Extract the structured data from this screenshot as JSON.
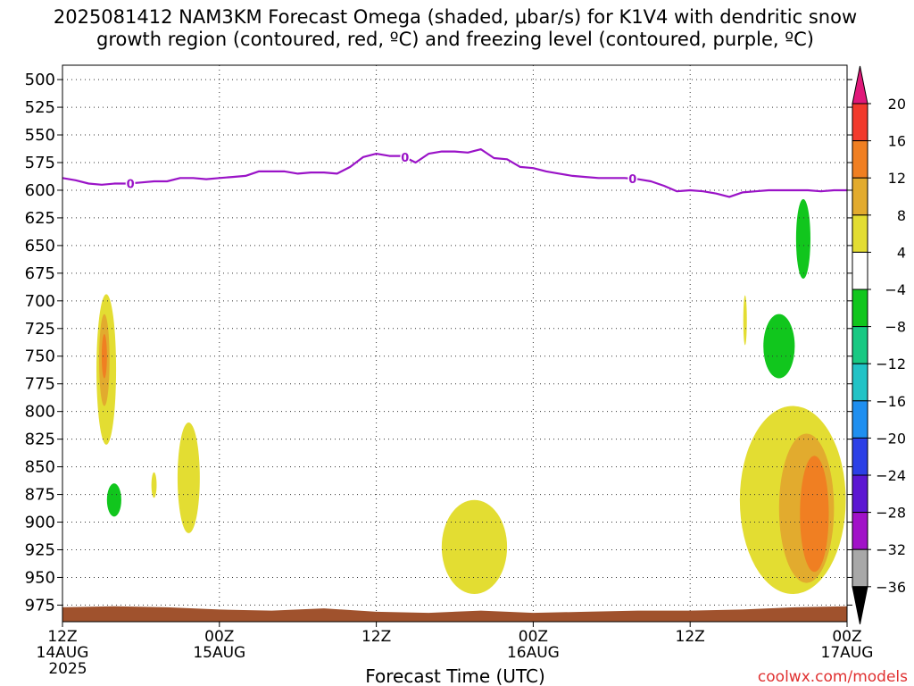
{
  "chart_data": {
    "type": "heatmap",
    "title_lines": [
      "2025081412 NAM3KM Forecast Omega (shaded, μbar/s) for K1V4 with dendritic snow",
      "growth region (contoured, red, ºC) and freezing level (contoured, purple, ºC)"
    ],
    "xlabel": "Forecast Time (UTC)",
    "credit": "coolwx.com/models",
    "x_range_hours": [
      0,
      60
    ],
    "x_ticks": [
      {
        "hour": 0,
        "lines": [
          "12Z",
          "14AUG",
          "2025"
        ]
      },
      {
        "hour": 12,
        "lines": [
          "00Z",
          "15AUG"
        ]
      },
      {
        "hour": 24,
        "lines": [
          "12Z"
        ]
      },
      {
        "hour": 36,
        "lines": [
          "00Z",
          "16AUG"
        ]
      },
      {
        "hour": 48,
        "lines": [
          "12Z"
        ]
      },
      {
        "hour": 60,
        "lines": [
          "00Z",
          "17AUG"
        ]
      }
    ],
    "y_range_hpa": [
      487,
      990
    ],
    "y_ticks": [
      500,
      525,
      550,
      575,
      600,
      625,
      650,
      675,
      700,
      725,
      750,
      775,
      800,
      825,
      850,
      875,
      900,
      925,
      950,
      975
    ],
    "grid": true,
    "colorbar": {
      "bins": [
        {
          "from": 20,
          "to": null,
          "color": "#e0197a"
        },
        {
          "from": 16,
          "to": 20,
          "color": "#f23a2c"
        },
        {
          "from": 12,
          "to": 16,
          "color": "#f07f22"
        },
        {
          "from": 8,
          "to": 12,
          "color": "#e2ab2e"
        },
        {
          "from": 4,
          "to": 8,
          "color": "#e3dd32"
        },
        {
          "from": -4,
          "to": 4,
          "color": "#ffffff"
        },
        {
          "from": -8,
          "to": -4,
          "color": "#11c61d"
        },
        {
          "from": -12,
          "to": -8,
          "color": "#19c983"
        },
        {
          "from": -16,
          "to": -12,
          "color": "#22c3c6"
        },
        {
          "from": -20,
          "to": -16,
          "color": "#1f8ff0"
        },
        {
          "from": -24,
          "to": -20,
          "color": "#2c40e6"
        },
        {
          "from": -28,
          "to": -24,
          "color": "#5c17d2"
        },
        {
          "from": -32,
          "to": -28,
          "color": "#a112c8"
        },
        {
          "from": -36,
          "to": -32,
          "color": "#a8a8a8"
        },
        {
          "from": null,
          "to": -36,
          "color": "#000000"
        }
      ],
      "labels": [
        "20",
        "16",
        "12",
        "8",
        "4",
        "−4",
        "−8",
        "−12",
        "−16",
        "−20",
        "−24",
        "−28",
        "−32",
        "−36"
      ]
    },
    "freezing_level": {
      "color": "#9a13c7",
      "contour_label": "0",
      "label_hours": [
        5.2,
        26.2,
        43.6
      ],
      "hours": [
        0,
        1,
        2,
        3,
        4,
        5,
        6,
        7,
        8,
        9,
        10,
        11,
        12,
        13,
        14,
        15,
        16,
        17,
        18,
        19,
        20,
        21,
        22,
        23,
        24,
        25,
        26,
        27,
        28,
        29,
        30,
        31,
        32,
        33,
        34,
        35,
        36,
        37,
        38,
        39,
        40,
        41,
        42,
        43,
        44,
        45,
        46,
        47,
        48,
        49,
        50,
        51,
        52,
        53,
        54,
        55,
        56,
        57,
        58,
        59,
        60
      ],
      "pressure": [
        589,
        591,
        594,
        595,
        594,
        594,
        593,
        592,
        592,
        589,
        589,
        590,
        589,
        588,
        587,
        583,
        583,
        583,
        585,
        584,
        584,
        585,
        579,
        570,
        567,
        569,
        569,
        575,
        567,
        565,
        565,
        566,
        563,
        571,
        572,
        579,
        580,
        583,
        585,
        587,
        588,
        589,
        589,
        589,
        590,
        592,
        596,
        601,
        600,
        601,
        603,
        606,
        602,
        601,
        600,
        600,
        600,
        600,
        601,
        600,
        600
      ]
    },
    "omega_regions": [
      {
        "value_bin": "4 to 8",
        "color": "#e3dd32",
        "hours": [
          2.6,
          4.1
        ],
        "pressure_hpa": [
          694,
          830
        ]
      },
      {
        "value_bin": "8 to 12",
        "color": "#e2ab2e",
        "hours": [
          2.8,
          3.6
        ],
        "pressure_hpa": [
          712,
          795
        ]
      },
      {
        "value_bin": "12 to 16",
        "color": "#f07f22",
        "hours": [
          3.0,
          3.4
        ],
        "pressure_hpa": [
          730,
          770
        ]
      },
      {
        "value_bin": "-8 to -4",
        "color": "#11c61d",
        "hours": [
          3.4,
          4.5
        ],
        "pressure_hpa": [
          865,
          895
        ]
      },
      {
        "value_bin": "4 to 8",
        "color": "#e3dd32",
        "hours": [
          6.8,
          7.2
        ],
        "pressure_hpa": [
          855,
          878
        ]
      },
      {
        "value_bin": "4 to 8",
        "color": "#e3dd32",
        "hours": [
          8.8,
          10.5
        ],
        "pressure_hpa": [
          810,
          910
        ]
      },
      {
        "value_bin": "4 to 8",
        "color": "#e3dd32",
        "hours": [
          29.0,
          34.0
        ],
        "pressure_hpa": [
          880,
          965
        ]
      },
      {
        "value_bin": "-8 to -4",
        "color": "#11c61d",
        "hours": [
          56.1,
          57.2
        ],
        "pressure_hpa": [
          608,
          680
        ]
      },
      {
        "value_bin": "4 to 8",
        "color": "#e3dd32",
        "hours": [
          52.1,
          52.3
        ],
        "pressure_hpa": [
          695,
          740
        ]
      },
      {
        "value_bin": "-8 to -4",
        "color": "#11c61d",
        "hours": [
          53.6,
          56.0
        ],
        "pressure_hpa": [
          712,
          770
        ]
      },
      {
        "value_bin": "4 to 8",
        "color": "#e3dd32",
        "hours": [
          51.8,
          59.9
        ],
        "pressure_hpa": [
          795,
          965
        ]
      },
      {
        "value_bin": "8 to 12",
        "color": "#e2ab2e",
        "hours": [
          54.8,
          59.0
        ],
        "pressure_hpa": [
          820,
          955
        ]
      },
      {
        "value_bin": "12 to 16",
        "color": "#f07f22",
        "hours": [
          56.4,
          58.6
        ],
        "pressure_hpa": [
          840,
          945
        ]
      }
    ],
    "terrain": {
      "color": "#a0522d",
      "hours": [
        0,
        4,
        8,
        12,
        16,
        20,
        24,
        28,
        32,
        36,
        40,
        44,
        48,
        52,
        56,
        60
      ],
      "pressure": [
        977,
        976,
        977,
        979,
        980,
        978,
        981,
        982,
        980,
        982,
        981,
        980,
        980,
        979,
        977,
        976
      ]
    }
  }
}
